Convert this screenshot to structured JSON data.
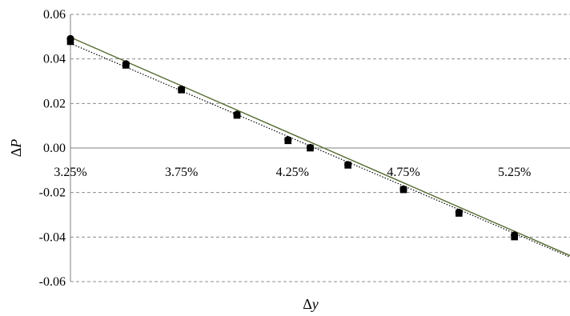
{
  "chart_data": {
    "type": "scatter",
    "title": "",
    "xlabel_prefix": "Δ",
    "xlabel_var": "y",
    "ylabel_prefix": "Δ",
    "ylabel_var": "P",
    "xlim": [
      3.25,
      5.5
    ],
    "ylim": [
      -0.06,
      0.06
    ],
    "x_ticks": [
      3.25,
      3.75,
      4.25,
      4.75,
      5.25
    ],
    "x_tick_labels": [
      "3.25%",
      "3.75%",
      "4.25%",
      "4.75%",
      "5.25%"
    ],
    "y_ticks": [
      -0.06,
      -0.04,
      -0.02,
      0.0,
      0.02,
      0.04,
      0.06
    ],
    "y_tick_labels": [
      "-0.06",
      "-0.04",
      "-0.02",
      "0.00",
      "0.02",
      "0.04",
      "0.06"
    ],
    "grid": "horizontal-dashed",
    "series": [
      {
        "marker": "circle",
        "points": [
          [
            3.25,
            0.0491
          ],
          [
            3.5,
            0.0378
          ],
          [
            3.75,
            0.0264
          ],
          [
            4.0,
            0.0151
          ],
          [
            4.23,
            0.0037
          ],
          [
            4.33,
            0.0002
          ],
          [
            4.5,
            -0.0075
          ],
          [
            4.75,
            -0.0185
          ],
          [
            5.0,
            -0.0289
          ],
          [
            5.25,
            -0.0391
          ]
        ]
      },
      {
        "marker": "square",
        "points": [
          [
            3.25,
            0.0478
          ],
          [
            3.5,
            0.0372
          ],
          [
            3.75,
            0.0261
          ],
          [
            4.0,
            0.0147
          ],
          [
            4.23,
            0.0033
          ],
          [
            4.33,
            0.0
          ],
          [
            4.5,
            -0.0077
          ],
          [
            4.75,
            -0.0187
          ],
          [
            5.0,
            -0.0293
          ],
          [
            5.25,
            -0.0399
          ]
        ]
      }
    ],
    "trendlines": [
      {
        "style": "solid",
        "color": "#556b2f",
        "from": [
          3.25,
          0.0497
        ],
        "to": [
          5.5,
          -0.0483
        ]
      },
      {
        "style": "dotted",
        "color": "#000000",
        "from": [
          3.25,
          0.047
        ],
        "to": [
          5.5,
          -0.049
        ]
      }
    ]
  }
}
